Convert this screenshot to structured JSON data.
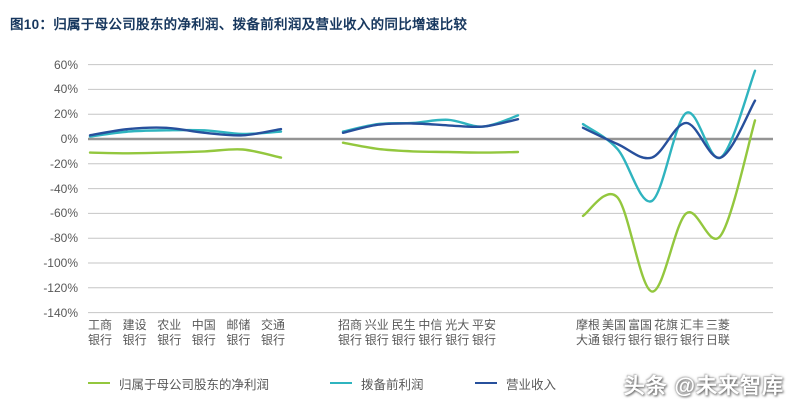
{
  "title": "图10：归属于母公司股东的净利润、拨备前利润及营业收入的同比增速比较",
  "watermark": "头条 @未来智库",
  "colors": {
    "net_profit": "#93c73e",
    "ppop": "#2fb4bf",
    "revenue": "#27509c",
    "grid": "#c6c6c6",
    "zero_line": "#949494",
    "text": "#595959",
    "title_text": "#17375e"
  },
  "legend": [
    {
      "key": "net_profit",
      "label": "归属于母公司股东的净利润"
    },
    {
      "key": "ppop",
      "label": "拨备前利润"
    },
    {
      "key": "revenue",
      "label": "营业收入"
    }
  ],
  "chart_data": {
    "type": "line",
    "title": "归属于母公司股东的净利润、拨备前利润及营业收入的同比增速比较",
    "unit": "% YoY",
    "grid": true,
    "legend_position": "bottom",
    "y_axis": {
      "max": 60,
      "min": -140,
      "step": 20,
      "tick_labels": [
        "60%",
        "40%",
        "20%",
        "0%",
        "-20%",
        "-40%",
        "-60%",
        "-80%",
        "-100%",
        "-120%",
        "-140%"
      ]
    },
    "series_names": {
      "net_profit": "归属于母公司股东的净利润",
      "ppop": "拨备前利润",
      "revenue": "营业收入"
    },
    "groups": [
      {
        "banks": [
          [
            "工商",
            "银行"
          ],
          [
            "建设",
            "银行"
          ],
          [
            "农业",
            "银行"
          ],
          [
            "中国",
            "银行"
          ],
          [
            "邮储",
            "银行"
          ],
          [
            "交通",
            "银行"
          ]
        ],
        "series": {
          "net_profit": [
            -11,
            -11.5,
            -11,
            -10,
            -8.5,
            -15
          ],
          "ppop": [
            2,
            6,
            7,
            7,
            4,
            6
          ],
          "revenue": [
            3,
            8,
            9,
            5,
            3,
            8
          ]
        }
      },
      {
        "banks": [
          [
            "招商",
            "银行"
          ],
          [
            "兴业",
            "银行"
          ],
          [
            "民生",
            "银行"
          ],
          [
            "中信",
            "银行"
          ],
          [
            "光大",
            "银行"
          ],
          [
            "平安",
            "银行"
          ]
        ],
        "series": {
          "net_profit": [
            -3,
            -8,
            -10,
            -10.5,
            -11,
            -10.5
          ],
          "ppop": [
            6,
            12,
            13,
            15.5,
            10,
            19
          ],
          "revenue": [
            5,
            11.5,
            12.5,
            11,
            10,
            16
          ]
        }
      },
      {
        "banks": [
          [
            "摩根",
            "大通"
          ],
          [
            "美国",
            "银行"
          ],
          [
            "富国",
            "银行"
          ],
          [
            "花旗",
            "银行"
          ],
          [
            "汇丰",
            "银行"
          ],
          [
            "三菱",
            "日联"
          ]
        ],
        "series": {
          "net_profit": [
            -62,
            -47,
            -123,
            -60,
            -78,
            15
          ],
          "ppop": [
            12,
            -8,
            -50,
            21,
            -15,
            55
          ],
          "revenue": [
            9,
            -4,
            -15,
            13,
            -15,
            31
          ]
        }
      }
    ]
  }
}
